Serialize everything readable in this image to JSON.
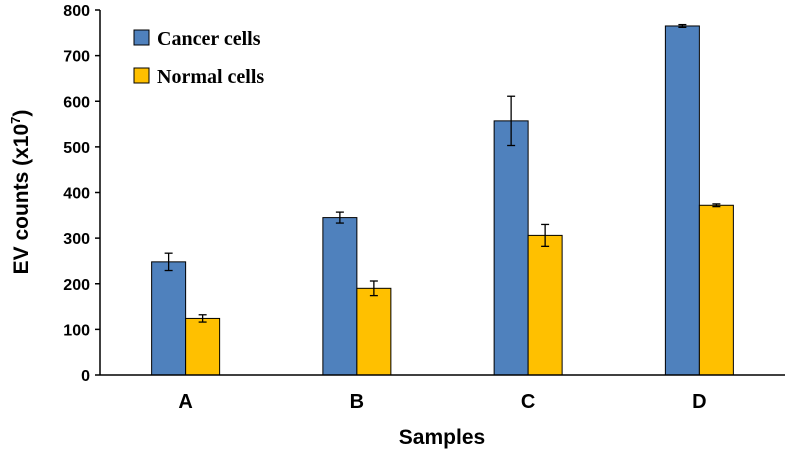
{
  "chart_data": {
    "type": "bar",
    "title": "",
    "xlabel": "Samples",
    "ylabel_main": "EV counts (x10",
    "ylabel_exp": "7",
    "ylabel_close": ")",
    "ylim": [
      0,
      800
    ],
    "yticks": [
      0,
      100,
      200,
      300,
      400,
      500,
      600,
      700,
      800
    ],
    "grid": false,
    "legend_position": "top-left",
    "categories": [
      "A",
      "B",
      "C",
      "D"
    ],
    "series": [
      {
        "name": "Cancer cells",
        "color": "#4F81BD",
        "values": [
          248,
          345,
          557,
          765
        ],
        "errors": [
          19,
          12,
          54,
          3
        ]
      },
      {
        "name": "Normal cells",
        "color": "#FFC000",
        "values": [
          124,
          190,
          306,
          372
        ],
        "errors": [
          8,
          16,
          24,
          3
        ]
      }
    ]
  }
}
